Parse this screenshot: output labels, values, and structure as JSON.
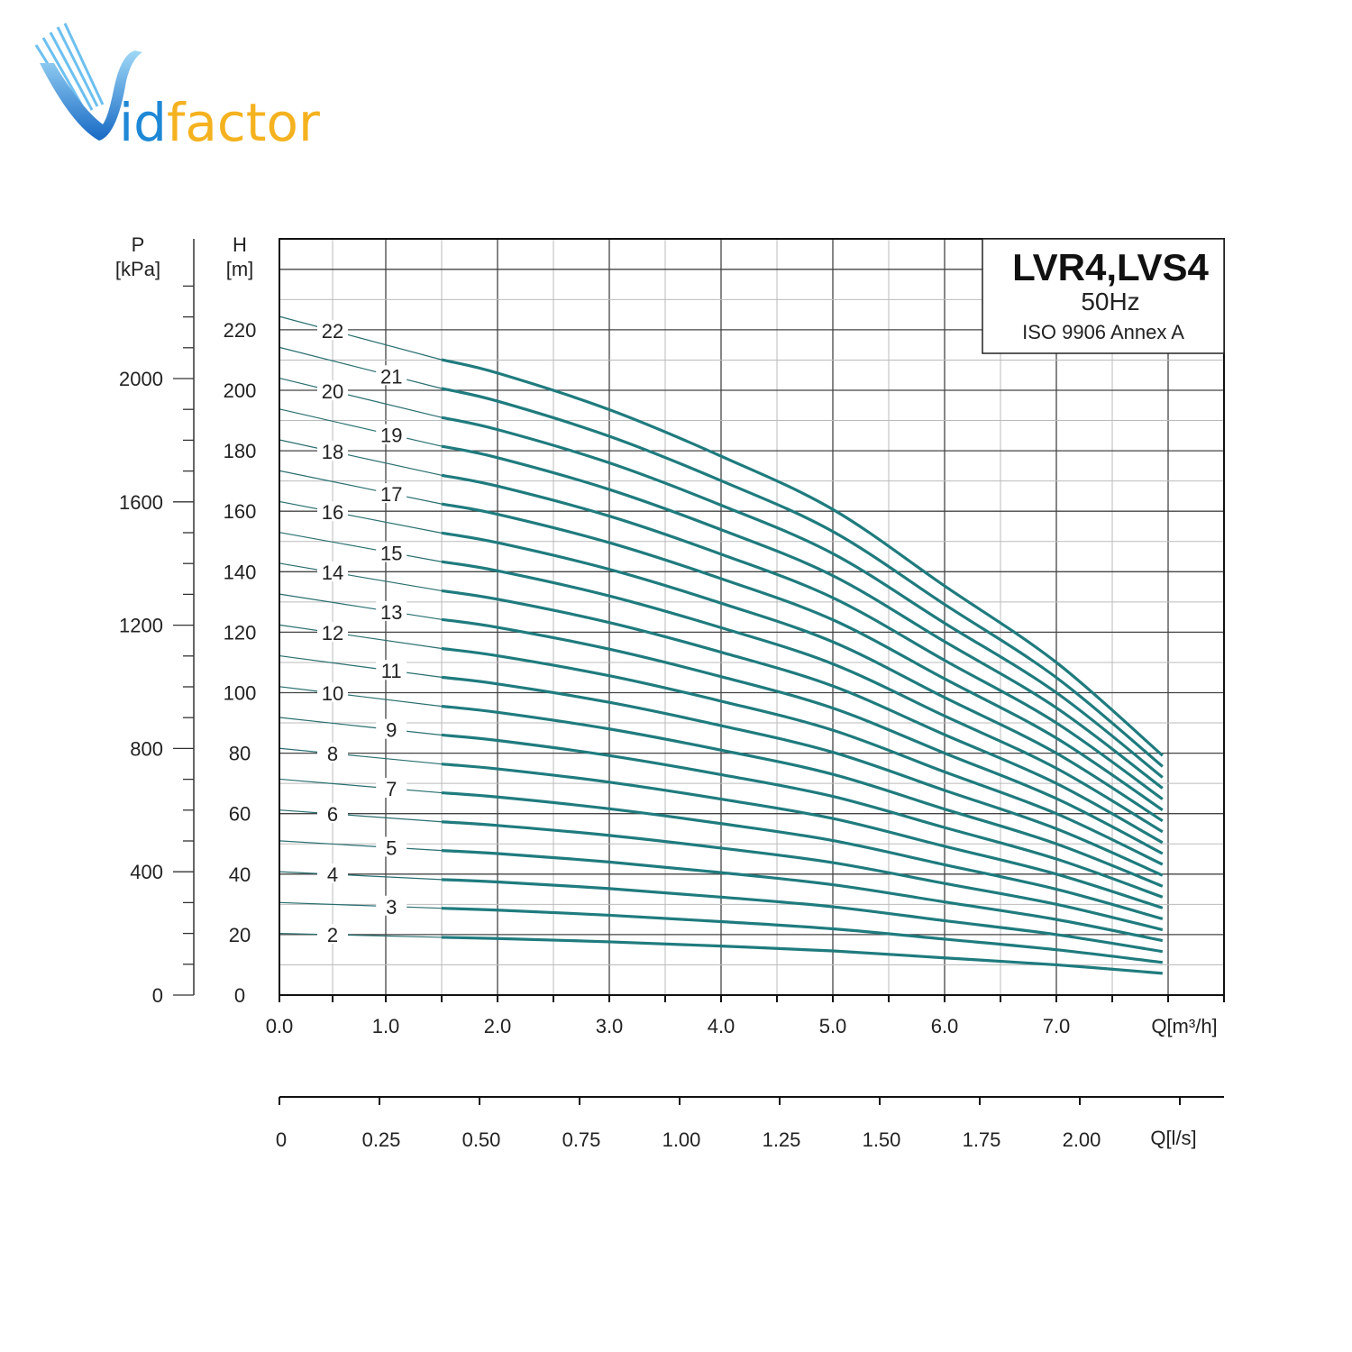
{
  "logo": {
    "text_v": "V",
    "text_rest": "idfactor",
    "colors": {
      "blue": "#1e88d6",
      "yellow": "#f5b21f"
    }
  },
  "legend_box": {
    "title": "LVR4,LVS4",
    "frequency": "50Hz",
    "standard": "ISO 9906 Annex A"
  },
  "chart_data": {
    "type": "line",
    "title": "LVR4,LVS4",
    "subtitle": "50Hz",
    "annotation": "ISO 9906 Annex A",
    "x": [
      0,
      1.5,
      2,
      3,
      4,
      5,
      6,
      7,
      7.95
    ],
    "xlabel": "Q[m³/h]",
    "xlim": [
      0,
      8.5
    ],
    "x_ticks": [
      "0.0",
      "1.0",
      "2.0",
      "3.0",
      "4.0",
      "5.0",
      "6.0",
      "7.0"
    ],
    "x2label": "Q[l/s]",
    "x2_ticks": [
      "0",
      "0.25",
      "0.50",
      "0.75",
      "1.00",
      "1.25",
      "1.50",
      "1.75",
      "2.00"
    ],
    "ylabel": "H",
    "ylabel_unit": "[m]",
    "ylim": [
      0,
      250
    ],
    "y_ticks": [
      "0",
      "20",
      "40",
      "60",
      "80",
      "100",
      "120",
      "140",
      "160",
      "180",
      "200",
      "220"
    ],
    "y2label": "P",
    "y2label_unit": "[kPa]",
    "y2_ticks": [
      "0",
      "400",
      "800",
      "1200",
      "1600",
      "2000"
    ],
    "grid": true,
    "line_color": "#1f7b7e",
    "series": [
      {
        "name": "2",
        "values": [
          20.4,
          19.1,
          18.7,
          17.6,
          16.2,
          14.6,
          12.3,
          10.0,
          7.2
        ]
      },
      {
        "name": "3",
        "values": [
          30.6,
          28.7,
          28.1,
          26.4,
          24.3,
          21.9,
          18.5,
          15.0,
          10.8
        ]
      },
      {
        "name": "4",
        "values": [
          40.8,
          38.2,
          37.4,
          35.2,
          32.4,
          29.2,
          24.6,
          20.0,
          14.4
        ]
      },
      {
        "name": "5",
        "values": [
          51.0,
          47.8,
          46.8,
          44.0,
          40.5,
          36.5,
          30.8,
          25.0,
          18.0
        ]
      },
      {
        "name": "6",
        "values": [
          61.2,
          57.3,
          56.1,
          52.8,
          48.6,
          43.8,
          36.9,
          30.0,
          21.6
        ]
      },
      {
        "name": "7",
        "values": [
          71.4,
          66.9,
          65.5,
          61.6,
          56.7,
          51.1,
          43.1,
          35.0,
          25.2
        ]
      },
      {
        "name": "8",
        "values": [
          81.6,
          76.4,
          74.8,
          70.4,
          64.8,
          58.4,
          49.2,
          40.0,
          28.8
        ]
      },
      {
        "name": "9",
        "values": [
          91.8,
          86.0,
          84.2,
          79.2,
          72.9,
          65.7,
          55.4,
          45.0,
          32.4
        ]
      },
      {
        "name": "10",
        "values": [
          102,
          95.5,
          93.5,
          88,
          81,
          73,
          61.5,
          50,
          36
        ]
      },
      {
        "name": "11",
        "values": [
          112.2,
          105.1,
          102.9,
          96.8,
          89.1,
          80.3,
          67.7,
          55,
          39.6
        ]
      },
      {
        "name": "12",
        "values": [
          122.4,
          114.6,
          112.2,
          105.6,
          97.2,
          87.6,
          73.8,
          60,
          43.2
        ]
      },
      {
        "name": "13",
        "values": [
          132.6,
          124.2,
          121.6,
          114.4,
          105.3,
          94.9,
          80,
          65,
          46.8
        ]
      },
      {
        "name": "14",
        "values": [
          142.8,
          133.7,
          130.9,
          123.2,
          113.4,
          102.2,
          86.1,
          70,
          50.4
        ]
      },
      {
        "name": "15",
        "values": [
          153,
          143.3,
          140.3,
          132,
          121.5,
          109.5,
          92.3,
          75,
          54
        ]
      },
      {
        "name": "16",
        "values": [
          163.2,
          152.8,
          149.6,
          140.8,
          129.6,
          116.8,
          98.4,
          80,
          57.6
        ]
      },
      {
        "name": "17",
        "values": [
          173.4,
          162.4,
          159,
          149.6,
          137.7,
          124.1,
          104.6,
          85,
          61.2
        ]
      },
      {
        "name": "18",
        "values": [
          183.6,
          171.9,
          168.3,
          158.4,
          145.8,
          131.4,
          110.7,
          90,
          64.8
        ]
      },
      {
        "name": "19",
        "values": [
          193.8,
          181.5,
          177.7,
          167.2,
          153.9,
          138.7,
          116.9,
          95,
          68.4
        ]
      },
      {
        "name": "20",
        "values": [
          204,
          191,
          187,
          176,
          162,
          146,
          123,
          100,
          72
        ]
      },
      {
        "name": "21",
        "values": [
          214.2,
          200.6,
          196.4,
          184.8,
          170.1,
          153.3,
          129.2,
          105,
          75.6
        ]
      },
      {
        "name": "22",
        "values": [
          224.4,
          210.1,
          205.7,
          193.6,
          178.2,
          160.6,
          135.3,
          110,
          79.2
        ]
      }
    ]
  }
}
